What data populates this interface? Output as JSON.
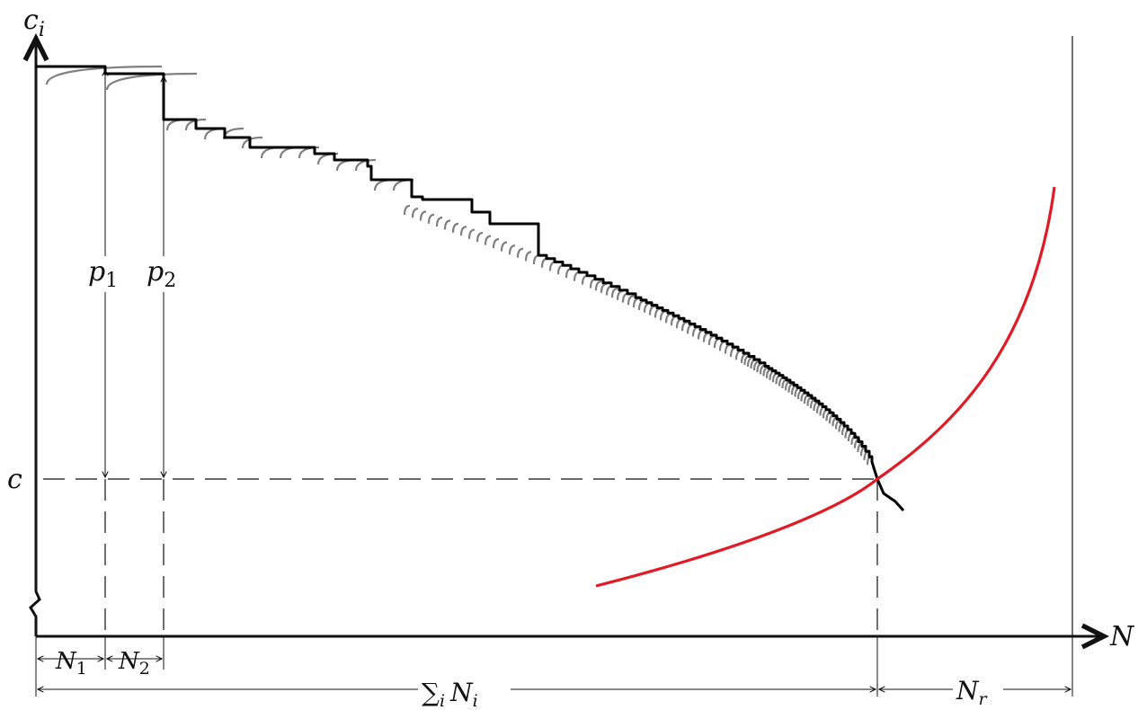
{
  "labels": {
    "y_axis_main": "c",
    "y_axis_sub": "i",
    "x_axis": "N",
    "c_level": "c",
    "p1_main": "p",
    "p1_sub": "1",
    "p2_main": "p",
    "p2_sub": "2",
    "n1_main": "N",
    "n1_sub": "1",
    "n2_main": "N",
    "n2_sub": "2",
    "sum_symbol": "∑",
    "sum_sub": "i",
    "sum_main": "N",
    "sum_main_sub": "i",
    "nr_main": "N",
    "nr_sub": "r"
  },
  "colors": {
    "axis": "#111111",
    "step_curve": "#000000",
    "arcs": "#808080",
    "supply_curve": "#e01b24",
    "guide": "#111111"
  }
}
